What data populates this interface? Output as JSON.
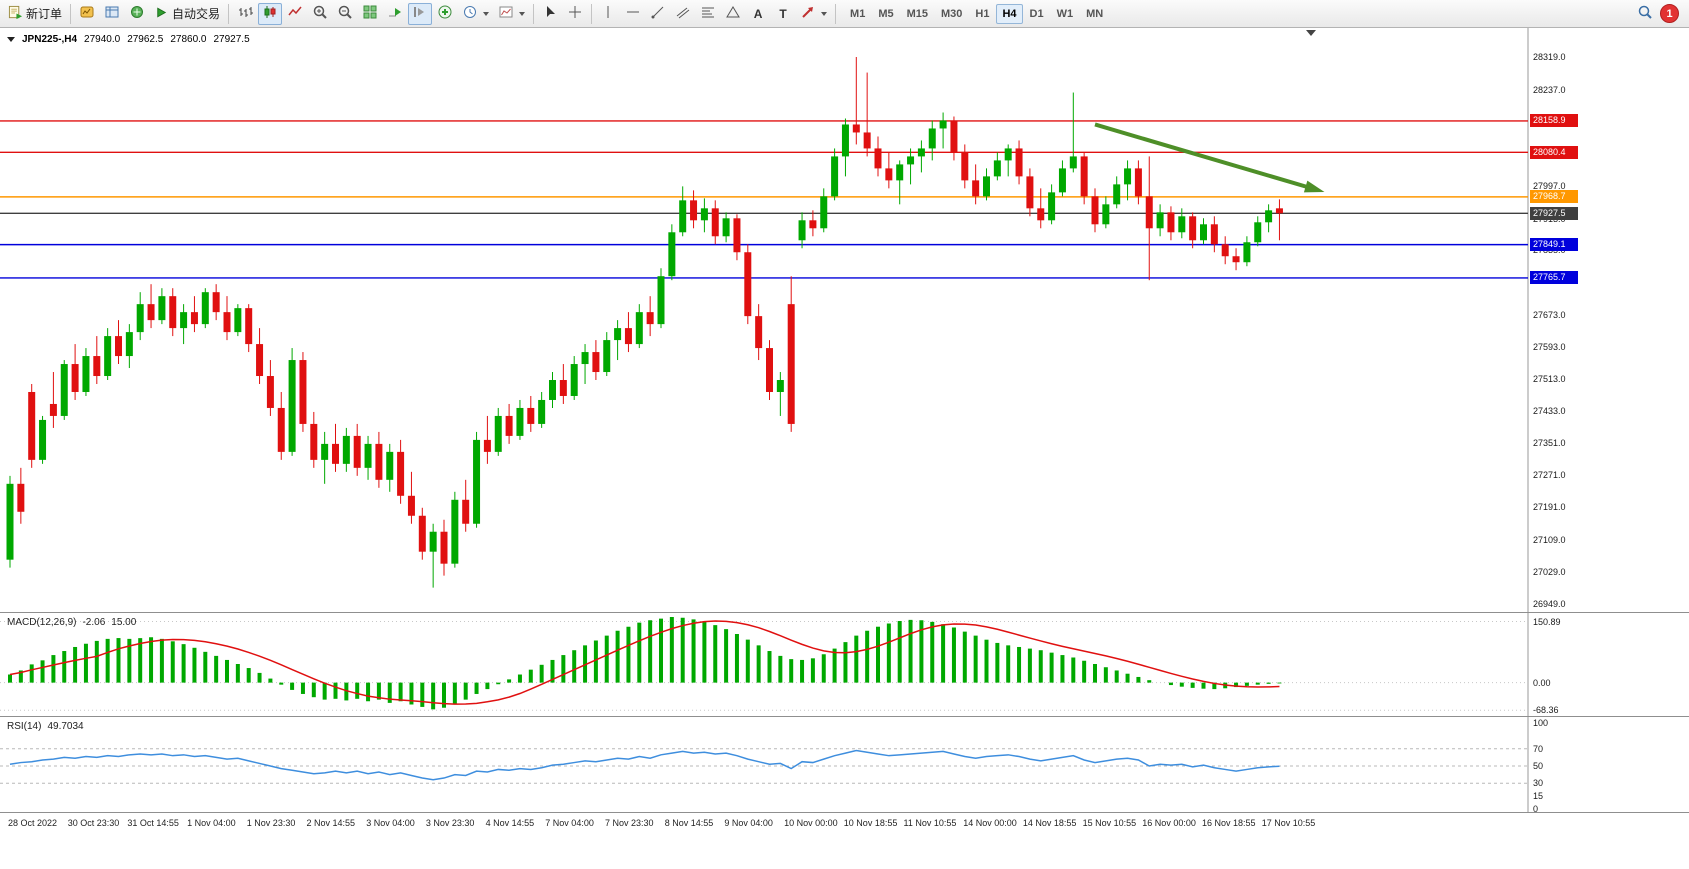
{
  "toolbar": {
    "new_order_label": "新订单",
    "autotrading_label": "自动交易",
    "text_tool_glyph": "A",
    "label_tool_glyph": "T",
    "timeframes": [
      "M1",
      "M5",
      "M15",
      "M30",
      "H1",
      "H4",
      "D1",
      "W1",
      "MN"
    ],
    "active_timeframe": "H4",
    "notification_count": "1"
  },
  "chart_info": {
    "symbol_period": "JPN225-,H4",
    "open": "27940.0",
    "high": "27962.5",
    "low": "27860.0",
    "close": "27927.5"
  },
  "chart_data": {
    "type": "candlestick",
    "title": "JPN225-,H4",
    "ylim": [
      26949.0,
      28319.0
    ],
    "y_ticks": [
      "28319.0",
      "28237.0",
      "27997.0",
      "27913.0",
      "27835.0",
      "27673.0",
      "27593.0",
      "27513.0",
      "27433.0",
      "27351.0",
      "27271.0",
      "27191.0",
      "27109.0",
      "27029.0",
      "26949.0"
    ],
    "x_labels": [
      "28 Oct 2022",
      "30 Oct 23:30",
      "31 Oct 14:55",
      "1 Nov 04:00",
      "1 Nov 23:30",
      "2 Nov 14:55",
      "3 Nov 04:00",
      "3 Nov 23:30",
      "4 Nov 14:55",
      "7 Nov 04:00",
      "7 Nov 23:30",
      "8 Nov 14:55",
      "9 Nov 04:00",
      "10 Nov 00:00",
      "10 Nov 18:55",
      "11 Nov 10:55",
      "14 Nov 00:00",
      "14 Nov 18:55",
      "15 Nov 10:55",
      "16 Nov 00:00",
      "16 Nov 18:55",
      "17 Nov 10:55"
    ],
    "levels": [
      {
        "price": 28158.9,
        "label": "28158.9",
        "color": "#e01010"
      },
      {
        "price": 28080.4,
        "label": "28080.4",
        "color": "#e01010"
      },
      {
        "price": 27968.7,
        "label": "27968.7",
        "color": "#ff9800"
      },
      {
        "price": 27927.5,
        "label": "27927.5",
        "color": "#3f3f3f"
      },
      {
        "price": 27849.1,
        "label": "27849.1",
        "color": "#0000dc"
      },
      {
        "price": 27765.7,
        "label": "27765.7",
        "color": "#0000dc"
      }
    ],
    "annotation_arrow": {
      "from_bar": 100,
      "from_price": 28150,
      "to_bar": 120,
      "to_price": 27990,
      "color": "#4e8f28"
    },
    "colors": {
      "up": "#00a800",
      "down": "#e01010",
      "macd_hist": "#00a800",
      "macd_signal": "#e01010",
      "rsi_line": "#3e8ede"
    },
    "candles": [
      [
        27060,
        27270,
        27040,
        27250
      ],
      [
        27250,
        27290,
        27150,
        27180
      ],
      [
        27480,
        27500,
        27290,
        27310
      ],
      [
        27310,
        27420,
        27300,
        27410
      ],
      [
        27450,
        27530,
        27390,
        27420
      ],
      [
        27420,
        27560,
        27410,
        27550
      ],
      [
        27550,
        27600,
        27460,
        27480
      ],
      [
        27480,
        27590,
        27470,
        27570
      ],
      [
        27570,
        27620,
        27500,
        27520
      ],
      [
        27520,
        27640,
        27510,
        27620
      ],
      [
        27620,
        27660,
        27550,
        27570
      ],
      [
        27570,
        27650,
        27540,
        27630
      ],
      [
        27630,
        27730,
        27610,
        27700
      ],
      [
        27700,
        27750,
        27640,
        27660
      ],
      [
        27660,
        27740,
        27650,
        27720
      ],
      [
        27720,
        27740,
        27620,
        27640
      ],
      [
        27640,
        27700,
        27600,
        27680
      ],
      [
        27680,
        27720,
        27630,
        27650
      ],
      [
        27650,
        27740,
        27640,
        27730
      ],
      [
        27730,
        27750,
        27660,
        27680
      ],
      [
        27680,
        27720,
        27610,
        27630
      ],
      [
        27630,
        27700,
        27620,
        27690
      ],
      [
        27690,
        27700,
        27580,
        27600
      ],
      [
        27600,
        27640,
        27500,
        27520
      ],
      [
        27520,
        27560,
        27420,
        27440
      ],
      [
        27440,
        27480,
        27310,
        27330
      ],
      [
        27330,
        27590,
        27320,
        27560
      ],
      [
        27560,
        27580,
        27380,
        27400
      ],
      [
        27400,
        27430,
        27290,
        27310
      ],
      [
        27310,
        27380,
        27250,
        27350
      ],
      [
        27350,
        27400,
        27280,
        27300
      ],
      [
        27300,
        27390,
        27280,
        27370
      ],
      [
        27370,
        27400,
        27270,
        27290
      ],
      [
        27290,
        27370,
        27260,
        27350
      ],
      [
        27350,
        27380,
        27240,
        27260
      ],
      [
        27260,
        27350,
        27230,
        27330
      ],
      [
        27330,
        27360,
        27200,
        27220
      ],
      [
        27220,
        27280,
        27150,
        27170
      ],
      [
        27170,
        27190,
        27060,
        27080
      ],
      [
        27080,
        27150,
        26990,
        27130
      ],
      [
        27130,
        27160,
        27020,
        27050
      ],
      [
        27050,
        27230,
        27040,
        27210
      ],
      [
        27210,
        27260,
        27130,
        27150
      ],
      [
        27150,
        27380,
        27140,
        27360
      ],
      [
        27360,
        27420,
        27300,
        27330
      ],
      [
        27330,
        27440,
        27320,
        27420
      ],
      [
        27420,
        27450,
        27350,
        27370
      ],
      [
        27370,
        27460,
        27360,
        27440
      ],
      [
        27440,
        27470,
        27380,
        27400
      ],
      [
        27400,
        27480,
        27390,
        27460
      ],
      [
        27460,
        27530,
        27440,
        27510
      ],
      [
        27510,
        27550,
        27450,
        27470
      ],
      [
        27470,
        27570,
        27460,
        27550
      ],
      [
        27550,
        27600,
        27500,
        27580
      ],
      [
        27580,
        27610,
        27510,
        27530
      ],
      [
        27530,
        27630,
        27520,
        27610
      ],
      [
        27610,
        27660,
        27560,
        27640
      ],
      [
        27640,
        27680,
        27580,
        27600
      ],
      [
        27600,
        27700,
        27590,
        27680
      ],
      [
        27680,
        27720,
        27620,
        27650
      ],
      [
        27650,
        27790,
        27640,
        27770
      ],
      [
        27770,
        27900,
        27760,
        27880
      ],
      [
        27880,
        27995,
        27870,
        27960
      ],
      [
        27960,
        27985,
        27890,
        27910
      ],
      [
        27910,
        27965,
        27880,
        27940
      ],
      [
        27940,
        27960,
        27850,
        27870
      ],
      [
        27870,
        27930,
        27855,
        27915
      ],
      [
        27915,
        27925,
        27810,
        27830
      ],
      [
        27830,
        27850,
        27650,
        27670
      ],
      [
        27670,
        27700,
        27560,
        27590
      ],
      [
        27590,
        27610,
        27460,
        27480
      ],
      [
        27480,
        27530,
        27420,
        27510
      ],
      [
        27700,
        27770,
        27380,
        27400
      ],
      [
        27860,
        27930,
        27840,
        27910
      ],
      [
        27910,
        27935,
        27870,
        27890
      ],
      [
        27890,
        27990,
        27880,
        27970
      ],
      [
        27970,
        28090,
        27960,
        28070
      ],
      [
        28070,
        28165,
        28020,
        28150
      ],
      [
        28150,
        28319,
        28100,
        28130
      ],
      [
        28130,
        28280,
        28070,
        28090
      ],
      [
        28090,
        28120,
        28020,
        28040
      ],
      [
        28040,
        28080,
        27990,
        28010
      ],
      [
        28010,
        28060,
        27950,
        28050
      ],
      [
        28050,
        28090,
        28000,
        28070
      ],
      [
        28070,
        28110,
        28030,
        28090
      ],
      [
        28090,
        28160,
        28060,
        28140
      ],
      [
        28140,
        28180,
        28090,
        28160
      ],
      [
        28160,
        28170,
        28060,
        28080
      ],
      [
        28080,
        28100,
        27990,
        28010
      ],
      [
        28010,
        28050,
        27950,
        27970
      ],
      [
        27970,
        28040,
        27960,
        28020
      ],
      [
        28020,
        28080,
        28010,
        28060
      ],
      [
        28060,
        28100,
        28020,
        28090
      ],
      [
        28090,
        28110,
        28000,
        28020
      ],
      [
        28020,
        28040,
        27920,
        27940
      ],
      [
        27940,
        27990,
        27890,
        27910
      ],
      [
        27910,
        28000,
        27900,
        27980
      ],
      [
        27980,
        28060,
        27970,
        28040
      ],
      [
        28040,
        28230,
        28030,
        28070
      ],
      [
        28070,
        28080,
        27950,
        27970
      ],
      [
        27970,
        27990,
        27880,
        27900
      ],
      [
        27900,
        27970,
        27890,
        27950
      ],
      [
        27950,
        28020,
        27940,
        28000
      ],
      [
        28000,
        28060,
        27960,
        28040
      ],
      [
        28040,
        28060,
        27950,
        27970
      ],
      [
        27970,
        28070,
        27760,
        27890
      ],
      [
        27890,
        27950,
        27870,
        27930
      ],
      [
        27930,
        27945,
        27860,
        27880
      ],
      [
        27880,
        27940,
        27865,
        27920
      ],
      [
        27920,
        27930,
        27840,
        27860
      ],
      [
        27860,
        27915,
        27850,
        27900
      ],
      [
        27900,
        27920,
        27830,
        27850
      ],
      [
        27850,
        27870,
        27800,
        27820
      ],
      [
        27820,
        27840,
        27785,
        27805
      ],
      [
        27805,
        27870,
        27795,
        27855
      ],
      [
        27855,
        27920,
        27845,
        27905
      ],
      [
        27905,
        27950,
        27880,
        27935
      ],
      [
        27940,
        27962.5,
        27860,
        27927.5
      ]
    ],
    "indicators": [
      {
        "name": "MACD",
        "title": "MACD(12,26,9)",
        "value_main": "-2.06",
        "value_signal": "15.00",
        "ylim": [
          -75,
          162
        ],
        "y_ticks": [
          "150.89",
          "0.00",
          "-68.36"
        ],
        "hist": [
          20,
          30,
          45,
          55,
          68,
          78,
          88,
          96,
          103,
          108,
          110,
          108,
          110,
          112,
          108,
          102,
          95,
          86,
          76,
          66,
          56,
          46,
          36,
          24,
          10,
          -5,
          -18,
          -28,
          -36,
          -42,
          -40,
          -44,
          -40,
          -46,
          -42,
          -50,
          -46,
          -54,
          -60,
          -66,
          -62,
          -52,
          -42,
          -28,
          -16,
          -4,
          8,
          20,
          32,
          44,
          56,
          68,
          80,
          92,
          104,
          116,
          128,
          138,
          148,
          154,
          158,
          162,
          160,
          156,
          150,
          142,
          132,
          120,
          106,
          92,
          78,
          66,
          58,
          56,
          60,
          70,
          84,
          100,
          116,
          128,
          138,
          146,
          152,
          155,
          154,
          150,
          144,
          136,
          126,
          116,
          106,
          98,
          92,
          88,
          84,
          80,
          74,
          68,
          62,
          54,
          46,
          38,
          30,
          22,
          14,
          6,
          0,
          -6,
          -10,
          -13,
          -15,
          -16,
          -14,
          -11,
          -8,
          -5,
          -3,
          -2
        ]
      },
      {
        "name": "RSI",
        "title": "RSI(14)",
        "value": "49.7034",
        "ylim": [
          0,
          100
        ],
        "levels": [
          70,
          50,
          30
        ],
        "y_ticks": [
          "100",
          "70",
          "50",
          "30",
          "15",
          "0"
        ],
        "line": [
          52,
          54,
          55,
          57,
          58,
          60,
          59,
          61,
          60,
          62,
          61,
          63,
          64,
          63,
          64,
          62,
          63,
          61,
          62,
          60,
          58,
          59,
          56,
          53,
          50,
          47,
          45,
          43,
          41,
          42,
          44,
          42,
          44,
          41,
          43,
          40,
          42,
          39,
          36,
          34,
          36,
          40,
          39,
          44,
          43,
          46,
          45,
          47,
          46,
          48,
          51,
          52,
          54,
          56,
          55,
          57,
          59,
          58,
          61,
          59,
          63,
          65,
          67,
          65,
          66,
          64,
          65,
          62,
          58,
          55,
          52,
          53,
          47,
          55,
          54,
          58,
          62,
          65,
          68,
          66,
          64,
          62,
          63,
          64,
          65,
          66,
          67,
          64,
          61,
          59,
          61,
          62,
          63,
          61,
          58,
          56,
          58,
          60,
          62,
          57,
          54,
          56,
          58,
          59,
          57,
          50,
          52,
          51,
          52,
          49,
          51,
          48,
          46,
          44,
          46,
          48,
          49,
          49.7
        ]
      }
    ]
  }
}
